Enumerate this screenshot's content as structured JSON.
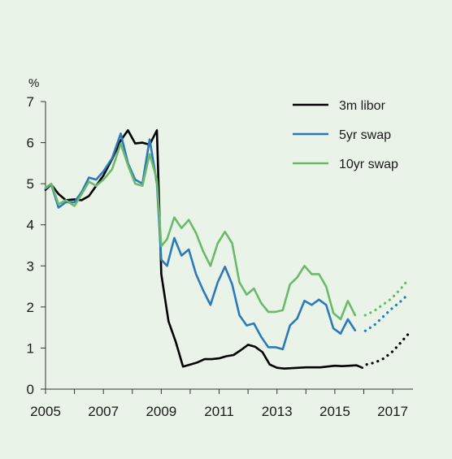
{
  "chart_data": {
    "type": "line",
    "ylabel": "%",
    "xlim": [
      2005,
      2017.7
    ],
    "ylim": [
      0,
      7
    ],
    "x_ticks": [
      "2005",
      "2007",
      "2009",
      "2011",
      "2013",
      "2015",
      "2017"
    ],
    "y_ticks": [
      "0",
      "1",
      "2",
      "3",
      "4",
      "5",
      "6",
      "7"
    ],
    "legend_position": "top-right",
    "series": [
      {
        "name": "3m libor",
        "color": "#000000",
        "historical": [
          [
            2005.0,
            4.85
          ],
          [
            2005.2,
            4.98
          ],
          [
            2005.45,
            4.75
          ],
          [
            2005.7,
            4.6
          ],
          [
            2006.0,
            4.62
          ],
          [
            2006.25,
            4.6
          ],
          [
            2006.5,
            4.7
          ],
          [
            2006.75,
            4.95
          ],
          [
            2007.0,
            5.2
          ],
          [
            2007.3,
            5.6
          ],
          [
            2007.6,
            6.05
          ],
          [
            2007.85,
            6.3
          ],
          [
            2008.1,
            5.98
          ],
          [
            2008.35,
            6.0
          ],
          [
            2008.6,
            5.95
          ],
          [
            2008.85,
            6.3
          ],
          [
            2009.0,
            2.8
          ],
          [
            2009.25,
            1.65
          ],
          [
            2009.5,
            1.15
          ],
          [
            2009.75,
            0.55
          ],
          [
            2010.0,
            0.6
          ],
          [
            2010.25,
            0.65
          ],
          [
            2010.5,
            0.73
          ],
          [
            2010.75,
            0.73
          ],
          [
            2011.0,
            0.75
          ],
          [
            2011.25,
            0.8
          ],
          [
            2011.5,
            0.83
          ],
          [
            2011.75,
            0.95
          ],
          [
            2012.0,
            1.08
          ],
          [
            2012.25,
            1.03
          ],
          [
            2012.5,
            0.9
          ],
          [
            2012.75,
            0.6
          ],
          [
            2013.0,
            0.52
          ],
          [
            2013.25,
            0.5
          ],
          [
            2013.5,
            0.51
          ],
          [
            2013.75,
            0.52
          ],
          [
            2014.0,
            0.53
          ],
          [
            2014.25,
            0.53
          ],
          [
            2014.5,
            0.53
          ],
          [
            2014.75,
            0.55
          ],
          [
            2015.0,
            0.57
          ],
          [
            2015.25,
            0.56
          ],
          [
            2015.5,
            0.57
          ],
          [
            2015.75,
            0.58
          ],
          [
            2015.95,
            0.52
          ]
        ],
        "forecast": [
          [
            2016.1,
            0.6
          ],
          [
            2016.4,
            0.65
          ],
          [
            2016.7,
            0.75
          ],
          [
            2017.0,
            0.92
          ],
          [
            2017.3,
            1.15
          ],
          [
            2017.55,
            1.35
          ]
        ]
      },
      {
        "name": "5yr swap",
        "color": "#2a7ab9",
        "historical": [
          [
            2005.0,
            4.88
          ],
          [
            2005.2,
            4.98
          ],
          [
            2005.45,
            4.42
          ],
          [
            2005.7,
            4.55
          ],
          [
            2006.0,
            4.55
          ],
          [
            2006.25,
            4.8
          ],
          [
            2006.5,
            5.15
          ],
          [
            2006.75,
            5.1
          ],
          [
            2007.0,
            5.3
          ],
          [
            2007.3,
            5.62
          ],
          [
            2007.6,
            6.22
          ],
          [
            2007.85,
            5.5
          ],
          [
            2008.1,
            5.1
          ],
          [
            2008.35,
            5.0
          ],
          [
            2008.6,
            6.08
          ],
          [
            2008.85,
            5.0
          ],
          [
            2009.0,
            3.15
          ],
          [
            2009.2,
            3.0
          ],
          [
            2009.45,
            3.68
          ],
          [
            2009.7,
            3.25
          ],
          [
            2009.95,
            3.4
          ],
          [
            2010.2,
            2.8
          ],
          [
            2010.45,
            2.4
          ],
          [
            2010.7,
            2.05
          ],
          [
            2010.95,
            2.6
          ],
          [
            2011.2,
            2.98
          ],
          [
            2011.45,
            2.55
          ],
          [
            2011.7,
            1.8
          ],
          [
            2011.95,
            1.55
          ],
          [
            2012.2,
            1.6
          ],
          [
            2012.45,
            1.28
          ],
          [
            2012.7,
            1.02
          ],
          [
            2012.95,
            1.02
          ],
          [
            2013.2,
            0.97
          ],
          [
            2013.45,
            1.55
          ],
          [
            2013.7,
            1.72
          ],
          [
            2013.95,
            2.15
          ],
          [
            2014.2,
            2.05
          ],
          [
            2014.45,
            2.18
          ],
          [
            2014.7,
            2.05
          ],
          [
            2014.95,
            1.48
          ],
          [
            2015.2,
            1.35
          ],
          [
            2015.45,
            1.7
          ],
          [
            2015.7,
            1.43
          ]
        ],
        "forecast": [
          [
            2016.05,
            1.42
          ],
          [
            2016.35,
            1.55
          ],
          [
            2016.65,
            1.75
          ],
          [
            2016.95,
            1.95
          ],
          [
            2017.25,
            2.12
          ],
          [
            2017.55,
            2.32
          ]
        ]
      },
      {
        "name": "10yr swap",
        "color": "#6cb96c",
        "historical": [
          [
            2005.0,
            4.9
          ],
          [
            2005.2,
            5.0
          ],
          [
            2005.45,
            4.5
          ],
          [
            2005.7,
            4.6
          ],
          [
            2006.0,
            4.46
          ],
          [
            2006.25,
            4.75
          ],
          [
            2006.5,
            5.05
          ],
          [
            2006.75,
            4.95
          ],
          [
            2007.0,
            5.1
          ],
          [
            2007.3,
            5.35
          ],
          [
            2007.6,
            5.98
          ],
          [
            2007.85,
            5.45
          ],
          [
            2008.1,
            5.0
          ],
          [
            2008.35,
            4.95
          ],
          [
            2008.6,
            5.72
          ],
          [
            2008.85,
            5.1
          ],
          [
            2009.0,
            3.48
          ],
          [
            2009.2,
            3.65
          ],
          [
            2009.45,
            4.18
          ],
          [
            2009.7,
            3.92
          ],
          [
            2009.95,
            4.12
          ],
          [
            2010.2,
            3.8
          ],
          [
            2010.45,
            3.35
          ],
          [
            2010.7,
            3.0
          ],
          [
            2010.95,
            3.55
          ],
          [
            2011.2,
            3.83
          ],
          [
            2011.45,
            3.55
          ],
          [
            2011.7,
            2.6
          ],
          [
            2011.95,
            2.3
          ],
          [
            2012.2,
            2.45
          ],
          [
            2012.45,
            2.1
          ],
          [
            2012.7,
            1.88
          ],
          [
            2012.95,
            1.88
          ],
          [
            2013.2,
            1.92
          ],
          [
            2013.45,
            2.55
          ],
          [
            2013.7,
            2.72
          ],
          [
            2013.95,
            3.0
          ],
          [
            2014.2,
            2.8
          ],
          [
            2014.45,
            2.8
          ],
          [
            2014.7,
            2.5
          ],
          [
            2014.95,
            1.85
          ],
          [
            2015.2,
            1.7
          ],
          [
            2015.45,
            2.15
          ],
          [
            2015.7,
            1.8
          ]
        ],
        "forecast": [
          [
            2016.05,
            1.8
          ],
          [
            2016.35,
            1.9
          ],
          [
            2016.65,
            2.05
          ],
          [
            2016.95,
            2.2
          ],
          [
            2017.25,
            2.42
          ],
          [
            2017.55,
            2.68
          ]
        ]
      }
    ]
  }
}
